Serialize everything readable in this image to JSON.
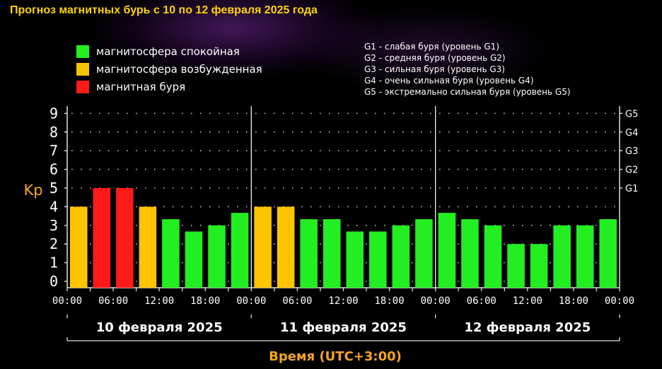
{
  "title": "Прогноз магнитных бурь с 10 по 12 февраля 2025 года",
  "legend": [
    {
      "label": "магнитосфера спокойная",
      "color": "#22ee22"
    },
    {
      "label": "магнитосфера возбужденная",
      "color": "#f5c400"
    },
    {
      "label": "магнитная буря",
      "color": "#ff1a1a"
    }
  ],
  "g_levels": [
    "G1 - слабая буря (уровень G1)",
    "G2 - средняя буря (уровень G2)",
    "G3 - сильная буря (уровень G3)",
    "G4 - очень сильная буря (уровень G4)",
    "G5 - экстремально сильная буря (уровень G5)"
  ],
  "chart_data": {
    "type": "bar",
    "ylabel": "Kp",
    "xlabel": "Время (UTC+3:00)",
    "ylim": [
      0,
      9.5
    ],
    "yticks": [
      "0",
      "1",
      "2",
      "3",
      "4",
      "5",
      "6",
      "7",
      "8",
      "9"
    ],
    "right_ticks": [
      {
        "label": "G1",
        "kp": 5
      },
      {
        "label": "G2",
        "kp": 6
      },
      {
        "label": "G3",
        "kp": 7
      },
      {
        "label": "G4",
        "kp": 8
      },
      {
        "label": "G5",
        "kp": 9
      }
    ],
    "days": [
      "10 февраля 2025",
      "11 февраля 2025",
      "12 февраля 2025"
    ],
    "time_ticks": [
      "00:00",
      "06:00",
      "12:00",
      "18:00"
    ],
    "last_tick": "00:00",
    "grid": true,
    "values": [
      4,
      5,
      5,
      4,
      3.33,
      2.67,
      3,
      3.67,
      4,
      4,
      3.33,
      3.33,
      2.67,
      2.67,
      3,
      3.33,
      3.67,
      3.33,
      3,
      2,
      2,
      3,
      3,
      3.33
    ],
    "colors": {
      "calm": "#22ee22",
      "active": "#ffc400",
      "storm": "#ff1a1a"
    }
  }
}
